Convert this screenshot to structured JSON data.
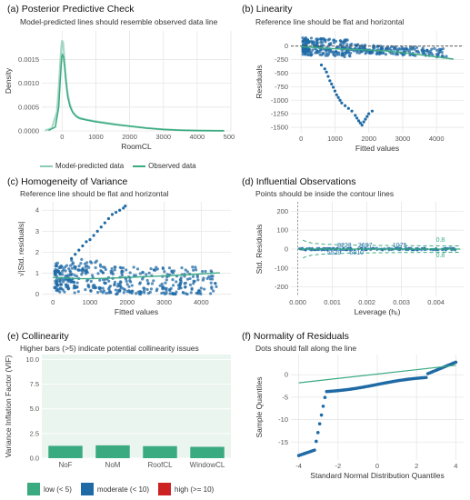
{
  "colors": {
    "green": "#3aaa80",
    "blue": "#1f6aa5",
    "red": "#cc2222",
    "grid": "#e6e6e6",
    "ref": "#444444",
    "collin_bg": "#eaf5ef"
  },
  "chart_data": [
    {
      "id": "ppc",
      "type": "line",
      "label": "(a)",
      "title": "Posterior Predictive Check",
      "subtitle": "Model-predicted lines should resemble observed data line",
      "xlabel": "RoomCL",
      "ylabel": "Density",
      "xlim": [
        -600,
        5000
      ],
      "ylim": [
        0,
        0.0021
      ],
      "xticks": [
        0,
        1000,
        2000,
        3000,
        4000,
        5000
      ],
      "yticks": [
        0.0,
        0.0005,
        0.001,
        0.0015
      ],
      "yticklabels": [
        "0.0000",
        "0.0005",
        "0.0010",
        "0.0015"
      ],
      "legend": [
        "Model-predicted data",
        "Observed data"
      ],
      "series": [
        {
          "name": "Model-predicted data",
          "x": [
            -500,
            -300,
            -150,
            -80,
            -30,
            0,
            30,
            60,
            100,
            150,
            220,
            300,
            400,
            500,
            700,
            1000,
            1300,
            1600,
            2000,
            2500,
            3000,
            3500,
            4000,
            4500,
            4800
          ],
          "y": [
            1e-05,
            6e-05,
            0.0004,
            0.0011,
            0.0017,
            0.0019,
            0.00185,
            0.0016,
            0.0012,
            0.00085,
            0.00058,
            0.00042,
            0.00033,
            0.00028,
            0.00024,
            0.0002,
            0.00017,
            0.00014,
            0.0001,
            6e-05,
            3e-05,
            1.5e-05,
            8e-06,
            3e-06,
            1e-06
          ]
        },
        {
          "name": "Observed data",
          "x": [
            -400,
            -200,
            -100,
            -50,
            -10,
            10,
            40,
            80,
            120,
            170,
            240,
            320,
            420,
            520,
            720,
            1000,
            1300,
            1600,
            2000,
            2500,
            3000,
            3500,
            4000,
            4500,
            4800
          ],
          "y": [
            1e-05,
            8e-05,
            0.0005,
            0.0011,
            0.00155,
            0.0016,
            0.00155,
            0.0013,
            0.001,
            0.0007,
            0.0005,
            0.00038,
            0.0003,
            0.00026,
            0.00023,
            0.00019,
            0.00016,
            0.00013,
            0.0001,
            6e-05,
            3e-05,
            1.5e-05,
            8e-06,
            3e-06,
            1e-06
          ]
        }
      ]
    },
    {
      "id": "linearity",
      "type": "scatter",
      "label": "(b)",
      "title": "Linearity",
      "subtitle": "Reference line should be flat and horizontal",
      "xlabel": "Fitted values",
      "ylabel": "Residuals",
      "xlim": [
        -300,
        4800
      ],
      "ylim": [
        -1600,
        280
      ],
      "xticks": [
        0,
        1000,
        2000,
        3000,
        4000
      ],
      "yticks": [
        0,
        -250,
        -500,
        -750,
        -1000,
        -1250,
        -1500
      ],
      "reference_y": 0,
      "smooth": {
        "x": [
          0,
          500,
          1000,
          1500,
          2000,
          2500,
          3000,
          3500,
          4000,
          4500
        ],
        "y": [
          -10,
          -30,
          -50,
          -60,
          -75,
          -90,
          -120,
          -160,
          -200,
          -240
        ]
      },
      "outliers": {
        "x": [
          600,
          700,
          750,
          800,
          850,
          900,
          950,
          1000,
          1050,
          1100,
          1150,
          1200,
          1300,
          1400,
          1500,
          1600,
          1650,
          1700,
          1750,
          1800,
          1850,
          1900,
          1950,
          2000,
          2100
        ],
        "y": [
          -350,
          -420,
          -480,
          -560,
          -640,
          -700,
          -760,
          -830,
          -900,
          -950,
          -1000,
          -1050,
          -1100,
          -1150,
          -1200,
          -1280,
          -1330,
          -1380,
          -1420,
          -1460,
          -1400,
          -1350,
          -1300,
          -1250,
          -1200
        ]
      }
    },
    {
      "id": "homogeneity",
      "type": "scatter",
      "label": "(c)",
      "title": "Homogeneity of Variance",
      "subtitle": "Reference line should be flat and horizontal",
      "xlabel": "Fitted values",
      "ylabel": "√|Std. residuals|",
      "xlim": [
        -300,
        4800
      ],
      "ylim": [
        -0.1,
        4.4
      ],
      "xticks": [
        0,
        1000,
        2000,
        3000,
        4000
      ],
      "yticks": [
        0,
        1,
        2,
        3,
        4
      ],
      "smooth": {
        "x": [
          0,
          300,
          600,
          1000,
          1500,
          2000,
          2500,
          3000,
          3500,
          4000,
          4500
        ],
        "y": [
          0.8,
          0.78,
          0.75,
          0.74,
          0.76,
          0.8,
          0.84,
          0.88,
          0.92,
          0.97,
          1.02
        ]
      },
      "outliers": {
        "x": [
          500,
          600,
          700,
          800,
          900,
          1000,
          1100,
          1200,
          1300,
          1400,
          1500,
          1600,
          1700,
          1800,
          1900,
          1950
        ],
        "y": [
          1.7,
          1.9,
          2.1,
          2.3,
          2.5,
          2.6,
          2.8,
          3.0,
          3.2,
          3.4,
          3.6,
          3.8,
          3.9,
          4.0,
          4.1,
          4.2
        ]
      }
    },
    {
      "id": "influential",
      "type": "scatter",
      "label": "(d)",
      "title": "Influential Observations",
      "subtitle": "Points should be inside the contour lines",
      "xlabel": "Leverage (hᵢᵢ)",
      "ylabel": "Std. Residuals",
      "xlim": [
        -0.0002,
        0.0048
      ],
      "ylim": [
        -250,
        250
      ],
      "xticks": [
        0.0,
        0.001,
        0.002,
        0.003,
        0.004
      ],
      "xticklabels": [
        "0.000",
        "0.001",
        "0.002",
        "0.003",
        "0.004"
      ],
      "yticks": [
        200,
        100,
        0,
        -100,
        -200
      ],
      "contour_label": "0.8",
      "point_labels": [
        {
          "text": "8223",
          "x": 0.00135,
          "y": 10
        },
        {
          "text": "2697",
          "x": 0.00195,
          "y": 10
        },
        {
          "text": "1075",
          "x": 0.00295,
          "y": 10
        },
        {
          "text": "5529",
          "x": 0.00105,
          "y": -30
        },
        {
          "text": "6810",
          "x": 0.0017,
          "y": -30
        }
      ]
    },
    {
      "id": "collinearity",
      "type": "bar",
      "label": "(e)",
      "title": "Collinearity",
      "subtitle": "Higher bars (>5) indicate potential collinearity issues",
      "xlabel": "",
      "ylabel": "Variance Inflation Factor (VIF)",
      "categories": [
        "NoF",
        "NoM",
        "RoofCL",
        "WindowCL"
      ],
      "values": [
        1.25,
        1.3,
        1.22,
        1.15
      ],
      "ylim": [
        0,
        10.5
      ],
      "yticks": [
        0,
        2.5,
        5.0,
        7.5,
        10.0
      ],
      "yticklabels": [
        "0.0",
        "2.5",
        "5.0",
        "7.5",
        "10.0"
      ],
      "legend": [
        {
          "label": "low (< 5)",
          "color": "#3aaa80"
        },
        {
          "label": "moderate (< 10)",
          "color": "#1f6aa5"
        },
        {
          "label": "high (>= 10)",
          "color": "#cc2222"
        }
      ]
    },
    {
      "id": "normality",
      "type": "scatter",
      "label": "(f)",
      "title": "Normality of Residuals",
      "subtitle": "Dots should fall along the line",
      "xlabel": "Standard Normal Distribution Quantiles",
      "ylabel": "Sample Quantiles",
      "xlim": [
        -4.4,
        4.4
      ],
      "ylim": [
        -19,
        4.5
      ],
      "xticks": [
        -4,
        -2,
        0,
        2,
        4
      ],
      "yticks": [
        0,
        -5,
        -10,
        -15
      ],
      "line": {
        "x": [
          -4,
          4
        ],
        "y": [
          -1.8,
          2.1
        ]
      }
    }
  ]
}
